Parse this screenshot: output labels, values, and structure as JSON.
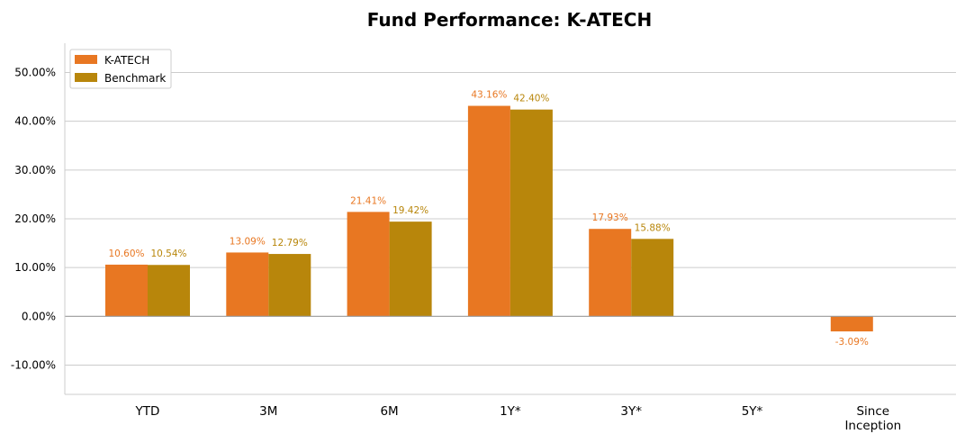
{
  "chart_data": {
    "type": "bar",
    "title": "Fund Performance: K-ATECH",
    "categories": [
      "YTD",
      "3M",
      "6M",
      "1Y*",
      "3Y*",
      "5Y*",
      "Since Inception"
    ],
    "category_lines": [
      [
        "YTD"
      ],
      [
        "3M"
      ],
      [
        "6M"
      ],
      [
        "1Y*"
      ],
      [
        "3Y*"
      ],
      [
        "5Y*"
      ],
      [
        "Since",
        "Inception"
      ]
    ],
    "series": [
      {
        "name": "K-ATECH",
        "color": "#E87722",
        "values": [
          10.6,
          13.09,
          21.41,
          43.16,
          17.93,
          null,
          -3.09
        ],
        "labels": [
          "10.60%",
          "13.09%",
          "21.41%",
          "43.16%",
          "17.93%",
          "",
          "-3.09%"
        ]
      },
      {
        "name": "Benchmark",
        "color": "#B8860B",
        "values": [
          10.54,
          12.79,
          19.42,
          42.4,
          15.88,
          null,
          null
        ],
        "labels": [
          "10.54%",
          "12.79%",
          "19.42%",
          "42.40%",
          "15.88%",
          "",
          ""
        ]
      }
    ],
    "yticks": [
      -10,
      0,
      10,
      20,
      30,
      40,
      50
    ],
    "ytick_labels": [
      "-10.00%",
      "0.00%",
      "10.00%",
      "20.00%",
      "30.00%",
      "40.00%",
      "50.00%"
    ],
    "ylim": [
      -16,
      56
    ],
    "grid": true,
    "legend_position": "top-left",
    "colors": {
      "grid": "#CCCCCC",
      "zero_line": "#999999",
      "axis": "#CCCCCC",
      "label_orange": "#E87722",
      "label_gold": "#B8860B"
    }
  }
}
